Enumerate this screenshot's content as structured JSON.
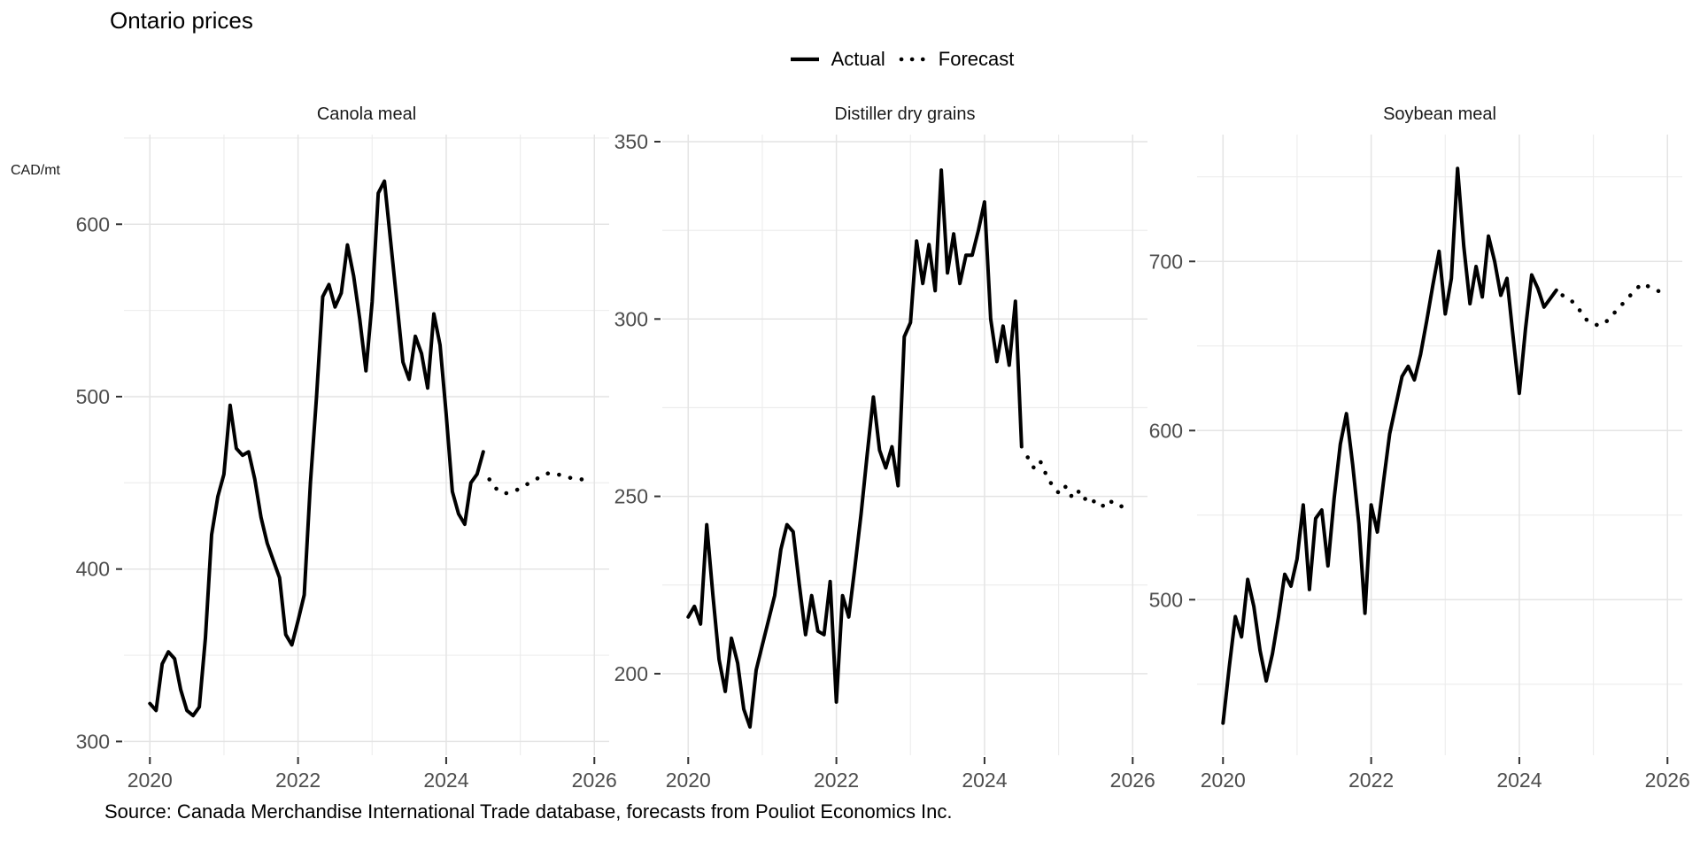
{
  "title": "Ontario prices",
  "unit_label": "CAD/mt",
  "legend": {
    "actual_label": "Actual",
    "forecast_label": "Forecast"
  },
  "source": "Source: Canada Merchandise International Trade database, forecasts from Pouliot Economics Inc.",
  "colors": {
    "line": "#000000",
    "grid_major": "#e4e4e4",
    "grid_minor": "#ececec",
    "axis_text": "#4d4d4d",
    "tick_mark": "#333333",
    "background": "#ffffff"
  },
  "chart_data": {
    "type": "line",
    "title": "Ontario prices",
    "ylabel": "CAD/mt",
    "legend_entries": [
      "Actual",
      "Forecast"
    ],
    "x": {
      "domain": [
        2019.65,
        2026.2
      ],
      "ticks": [
        2020,
        2022,
        2024,
        2026
      ],
      "minor_ticks": [
        2021,
        2023,
        2025
      ],
      "grid": true
    },
    "period": {
      "actual_start": "2020-01",
      "actual_end": "2024-07",
      "forecast_start": "2024-08",
      "forecast_end": "2025-12",
      "frequency": "monthly"
    },
    "facets": [
      {
        "title": "Canola meal",
        "ylim": [
          292,
          652
        ],
        "yticks": [
          300,
          400,
          500,
          600
        ],
        "yminor": [
          350,
          450,
          550,
          650
        ],
        "actual": [
          322,
          318,
          345,
          352,
          348,
          330,
          318,
          315,
          320,
          360,
          420,
          442,
          455,
          495,
          470,
          466,
          468,
          452,
          430,
          415,
          405,
          395,
          362,
          356,
          370,
          385,
          450,
          500,
          558,
          565,
          552,
          560,
          588,
          570,
          545,
          515,
          555,
          618,
          625,
          590,
          555,
          520,
          510,
          535,
          525,
          505,
          548,
          530,
          490,
          445,
          432,
          426,
          450,
          455,
          468
        ],
        "forecast": [
          452,
          447,
          444,
          444,
          445,
          447,
          449,
          451,
          453,
          455,
          456,
          455,
          454,
          453,
          452,
          452,
          453
        ]
      },
      {
        "title": "Distiller dry grains",
        "ylim": [
          177,
          352
        ],
        "yticks": [
          200,
          250,
          300,
          350
        ],
        "yminor": [
          225,
          275,
          325
        ],
        "actual": [
          216,
          219,
          214,
          242,
          222,
          204,
          195,
          210,
          203,
          190,
          185,
          201,
          208,
          215,
          222,
          235,
          242,
          240,
          225,
          211,
          222,
          212,
          211,
          226,
          192,
          222,
          216,
          230,
          245,
          262,
          278,
          263,
          258,
          264,
          253,
          295,
          299,
          322,
          310,
          321,
          308,
          342,
          313,
          324,
          310,
          318,
          318,
          325,
          333,
          300,
          288,
          298,
          287,
          305,
          264
        ],
        "forecast": [
          261,
          258,
          260,
          256,
          253,
          251,
          253,
          250,
          252,
          249,
          250,
          248,
          247,
          249,
          248,
          247,
          248
        ]
      },
      {
        "title": "Soybean meal",
        "ylim": [
          408,
          775
        ],
        "yticks": [
          500,
          600,
          700
        ],
        "yminor": [
          450,
          550,
          650,
          750
        ],
        "actual": [
          427,
          460,
          490,
          478,
          512,
          496,
          470,
          452,
          468,
          490,
          515,
          508,
          524,
          556,
          506,
          548,
          553,
          520,
          560,
          592,
          610,
          580,
          545,
          492,
          556,
          540,
          570,
          598,
          615,
          632,
          638,
          630,
          645,
          665,
          686,
          706,
          669,
          690,
          755,
          709,
          675,
          697,
          679,
          715,
          700,
          680,
          690,
          655,
          622,
          660,
          692,
          684,
          673,
          678,
          683
        ],
        "forecast": [
          680,
          678,
          675,
          670,
          665,
          663,
          662,
          664,
          668,
          672,
          676,
          680,
          684,
          687,
          685,
          683,
          682
        ]
      }
    ]
  }
}
